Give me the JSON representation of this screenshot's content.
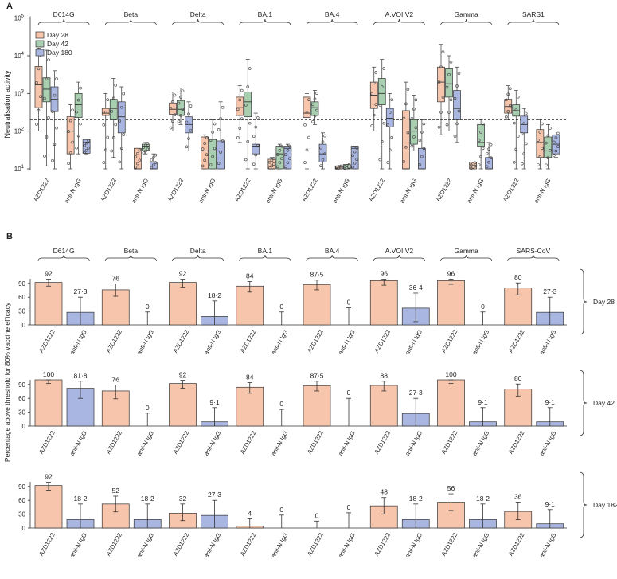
{
  "colors": {
    "day28": "#f7c5ab",
    "day42": "#a9cfb1",
    "day180": "#a9b6e2",
    "stroke": "#333333",
    "dashed": "#444444"
  },
  "chart_data": [
    {
      "type": "box",
      "panel": "A",
      "ylabel": "Neutralisation activity",
      "yscale": "log10",
      "ylim_exponent": [
        1,
        5
      ],
      "y_ticks": [
        {
          "base": "10",
          "exp": "1"
        },
        {
          "base": "10",
          "exp": "2"
        },
        {
          "base": "10",
          "exp": "3"
        },
        {
          "base": "10",
          "exp": "4"
        },
        {
          "base": "10",
          "exp": "5"
        }
      ],
      "threshold": 200,
      "legend": [
        "Day 28",
        "Day 42",
        "Day 180"
      ],
      "groups": [
        "AZD1222",
        "anti-N IgG"
      ],
      "variants": [
        {
          "name": "D614G",
          "boxes": [
            {
              "series": "Day 28",
              "group": "AZD1222",
              "q1": 420,
              "median": 1700,
              "q3": 5200,
              "lo": 100,
              "hi": 16000
            },
            {
              "series": "Day 42",
              "group": "AZD1222",
              "q1": 600,
              "median": 1300,
              "q3": 2600,
              "lo": 12,
              "hi": 14000
            },
            {
              "series": "Day 180",
              "group": "AZD1222",
              "q1": 330,
              "median": 700,
              "q3": 1500,
              "lo": 10,
              "hi": 4000
            },
            {
              "series": "Day 28",
              "group": "anti-N IgG",
              "q1": 25,
              "median": 100,
              "q3": 240,
              "lo": 10,
              "hi": 500
            },
            {
              "series": "Day 42",
              "group": "anti-N IgG",
              "q1": 230,
              "median": 500,
              "q3": 1000,
              "lo": 25,
              "hi": 2000
            },
            {
              "series": "Day 180",
              "group": "anti-N IgG",
              "q1": 26,
              "median": 50,
              "q3": 60,
              "lo": 25,
              "hi": 60
            }
          ]
        },
        {
          "name": "Beta",
          "boxes": [
            {
              "series": "Day 28",
              "group": "AZD1222",
              "q1": 260,
              "median": 300,
              "q3": 400,
              "lo": 10,
              "hi": 1000
            },
            {
              "series": "Day 42",
              "group": "AZD1222",
              "q1": 200,
              "median": 400,
              "q3": 700,
              "lo": 20,
              "hi": 2500
            },
            {
              "series": "Day 180",
              "group": "AZD1222",
              "q1": 90,
              "median": 240,
              "q3": 600,
              "lo": 10,
              "hi": 1500
            },
            {
              "series": "Day 28",
              "group": "anti-N IgG",
              "q1": 10,
              "median": 10,
              "q3": 35,
              "lo": 10,
              "hi": 35
            },
            {
              "series": "Day 42",
              "group": "anti-N IgG",
              "q1": 30,
              "median": 40,
              "q3": 45,
              "lo": 25,
              "hi": 50
            },
            {
              "series": "Day 180",
              "group": "anti-N IgG",
              "q1": 10,
              "median": 10,
              "q3": 15,
              "lo": 10,
              "hi": 25
            }
          ]
        },
        {
          "name": "Delta",
          "boxes": [
            {
              "series": "Day 28",
              "group": "AZD1222",
              "q1": 280,
              "median": 380,
              "q3": 560,
              "lo": 100,
              "hi": 1100
            },
            {
              "series": "Day 42",
              "group": "AZD1222",
              "q1": 260,
              "median": 380,
              "q3": 650,
              "lo": 150,
              "hi": 1400
            },
            {
              "series": "Day 180",
              "group": "AZD1222",
              "q1": 90,
              "median": 150,
              "q3": 240,
              "lo": 30,
              "hi": 600
            },
            {
              "series": "Day 28",
              "group": "anti-N IgG",
              "q1": 10,
              "median": 30,
              "q3": 70,
              "lo": 10,
              "hi": 80
            },
            {
              "series": "Day 42",
              "group": "anti-N IgG",
              "q1": 10,
              "median": 30,
              "q3": 60,
              "lo": 10,
              "hi": 200
            },
            {
              "series": "Day 180",
              "group": "anti-N IgG",
              "q1": 10,
              "median": 30,
              "q3": 55,
              "lo": 10,
              "hi": 600
            }
          ]
        },
        {
          "name": "BA.1",
          "boxes": [
            {
              "series": "Day 28",
              "group": "AZD1222",
              "q1": 260,
              "median": 420,
              "q3": 800,
              "lo": 50,
              "hi": 1600
            },
            {
              "series": "Day 42",
              "group": "AZD1222",
              "q1": 240,
              "median": 600,
              "q3": 1100,
              "lo": 10,
              "hi": 8000
            },
            {
              "series": "Day 180",
              "group": "AZD1222",
              "q1": 25,
              "median": 40,
              "q3": 45,
              "lo": 10,
              "hi": 300
            },
            {
              "series": "Day 28",
              "group": "anti-N IgG",
              "q1": 10,
              "median": 10,
              "q3": 18,
              "lo": 10,
              "hi": 20
            },
            {
              "series": "Day 42",
              "group": "anti-N IgG",
              "q1": 10,
              "median": 25,
              "q3": 40,
              "lo": 10,
              "hi": 45
            },
            {
              "series": "Day 180",
              "group": "anti-N IgG",
              "q1": 10,
              "median": 35,
              "q3": 40,
              "lo": 10,
              "hi": 45
            }
          ]
        },
        {
          "name": "BA.4",
          "boxes": [
            {
              "series": "Day 28",
              "group": "AZD1222",
              "q1": 230,
              "median": 300,
              "q3": 800,
              "lo": 10,
              "hi": 1000
            },
            {
              "series": "Day 42",
              "group": "AZD1222",
              "q1": 260,
              "median": 420,
              "q3": 600,
              "lo": 150,
              "hi": 1200
            },
            {
              "series": "Day 180",
              "group": "AZD1222",
              "q1": 15,
              "median": 25,
              "q3": 45,
              "lo": 10,
              "hi": 90
            },
            {
              "series": "Day 28",
              "group": "anti-N IgG",
              "q1": 10,
              "median": 10,
              "q3": 12,
              "lo": 10,
              "hi": 12
            },
            {
              "series": "Day 42",
              "group": "anti-N IgG",
              "q1": 10,
              "median": 10,
              "q3": 13,
              "lo": 10,
              "hi": 13
            },
            {
              "series": "Day 180",
              "group": "anti-N IgG",
              "q1": 10,
              "median": 35,
              "q3": 40,
              "lo": 10,
              "hi": 40
            }
          ]
        },
        {
          "name": "A.VOI.V2",
          "boxes": [
            {
              "series": "Day 28",
              "group": "AZD1222",
              "q1": 400,
              "median": 900,
              "q3": 2000,
              "lo": 100,
              "hi": 5000
            },
            {
              "series": "Day 42",
              "group": "AZD1222",
              "q1": 500,
              "median": 1000,
              "q3": 2500,
              "lo": 10,
              "hi": 8000
            },
            {
              "series": "Day 180",
              "group": "AZD1222",
              "q1": 130,
              "median": 220,
              "q3": 400,
              "lo": 10,
              "hi": 1000
            },
            {
              "series": "Day 28",
              "group": "anti-N IgG",
              "q1": 10,
              "median": 10,
              "q3": 350,
              "lo": 10,
              "hi": 2000
            },
            {
              "series": "Day 42",
              "group": "anti-N IgG",
              "q1": 45,
              "median": 100,
              "q3": 200,
              "lo": 30,
              "hi": 900
            },
            {
              "series": "Day 180",
              "group": "anti-N IgG",
              "q1": 10,
              "median": 10,
              "q3": 35,
              "lo": 10,
              "hi": 200
            }
          ]
        },
        {
          "name": "Gamma",
          "boxes": [
            {
              "series": "Day 28",
              "group": "AZD1222",
              "q1": 600,
              "median": 2000,
              "q3": 5000,
              "lo": 80,
              "hi": 20000
            },
            {
              "series": "Day 42",
              "group": "AZD1222",
              "q1": 800,
              "median": 1800,
              "q3": 4500,
              "lo": 100,
              "hi": 10000
            },
            {
              "series": "Day 180",
              "group": "AZD1222",
              "q1": 200,
              "median": 400,
              "q3": 1200,
              "lo": 50,
              "hi": 5000
            },
            {
              "series": "Day 28",
              "group": "anti-N IgG",
              "q1": 10,
              "median": 12,
              "q3": 15,
              "lo": 10,
              "hi": 15
            },
            {
              "series": "Day 42",
              "group": "anti-N IgG",
              "q1": 40,
              "median": 50,
              "q3": 150,
              "lo": 10,
              "hi": 200
            },
            {
              "series": "Day 180",
              "group": "anti-N IgG",
              "q1": 10,
              "median": 10,
              "q3": 20,
              "lo": 10,
              "hi": 50
            }
          ]
        },
        {
          "name": "SARS1",
          "boxes": [
            {
              "series": "Day 28",
              "group": "AZD1222",
              "q1": 300,
              "median": 450,
              "q3": 700,
              "lo": 200,
              "hi": 1600
            },
            {
              "series": "Day 42",
              "group": "AZD1222",
              "q1": 250,
              "median": 350,
              "q3": 500,
              "lo": 10,
              "hi": 1200
            },
            {
              "series": "Day 180",
              "group": "AZD1222",
              "q1": 90,
              "median": 150,
              "q3": 250,
              "lo": 10,
              "hi": 400
            },
            {
              "series": "Day 28",
              "group": "anti-N IgG",
              "q1": 20,
              "median": 50,
              "q3": 110,
              "lo": 10,
              "hi": 200
            },
            {
              "series": "Day 42",
              "group": "anti-N IgG",
              "q1": 20,
              "median": 30,
              "q3": 70,
              "lo": 10,
              "hi": 150
            },
            {
              "series": "Day 180",
              "group": "anti-N IgG",
              "q1": 25,
              "median": 45,
              "q3": 80,
              "lo": 20,
              "hi": 100
            }
          ]
        }
      ]
    },
    {
      "type": "bar",
      "panel": "B",
      "ylabel": "Percentage above threshold for 80% vaccine efficacy",
      "ylim": [
        0,
        100
      ],
      "y_ticks": [
        0,
        30,
        60,
        90
      ],
      "groups": [
        "AZD1222",
        "anti-N IgG"
      ],
      "variants": [
        "D614G",
        "Beta",
        "Delta",
        "BA.1",
        "BA.4",
        "A.VOI.V2",
        "Gamma",
        "SARS-CoV"
      ],
      "rows": [
        {
          "day": "Day 28",
          "azd": [
            {
              "v": 92,
              "lab": "92",
              "lo": 84,
              "hi": 99
            },
            {
              "v": 76,
              "lab": "76",
              "lo": 62,
              "hi": 89
            },
            {
              "v": 92,
              "lab": "92",
              "lo": 82,
              "hi": 99
            },
            {
              "v": 84,
              "lab": "84",
              "lo": 71,
              "hi": 94
            },
            {
              "v": 87.5,
              "lab": "87·5",
              "lo": 76,
              "hi": 97
            },
            {
              "v": 96,
              "lab": "96",
              "lo": 86,
              "hi": 99
            },
            {
              "v": 96,
              "lab": "96",
              "lo": 88,
              "hi": 99
            },
            {
              "v": 80,
              "lab": "80",
              "lo": 65,
              "hi": 91
            }
          ],
          "anti": [
            {
              "v": 27.3,
              "lab": "27·3",
              "lo": 0,
              "hi": 60
            },
            {
              "v": 0,
              "lab": "0",
              "lo": 0,
              "hi": 28
            },
            {
              "v": 18.2,
              "lab": "18·2",
              "lo": 0,
              "hi": 52
            },
            {
              "v": 0,
              "lab": "0",
              "lo": 0,
              "hi": 28
            },
            {
              "v": 0,
              "lab": "0",
              "lo": 0,
              "hi": 37
            },
            {
              "v": 36.4,
              "lab": "36·4",
              "lo": 7,
              "hi": 69
            },
            {
              "v": 0,
              "lab": "0",
              "lo": 0,
              "hi": 28
            },
            {
              "v": 27.3,
              "lab": "27·3",
              "lo": 0,
              "hi": 60
            }
          ]
        },
        {
          "day": "Day 42",
          "azd": [
            {
              "v": 100,
              "lab": "100",
              "lo": 92,
              "hi": 100
            },
            {
              "v": 76,
              "lab": "76",
              "lo": 59,
              "hi": 89
            },
            {
              "v": 92,
              "lab": "92",
              "lo": 82,
              "hi": 99
            },
            {
              "v": 84,
              "lab": "84",
              "lo": 71,
              "hi": 94
            },
            {
              "v": 87.5,
              "lab": "87·5",
              "lo": 76,
              "hi": 97
            },
            {
              "v": 88,
              "lab": "88",
              "lo": 76,
              "hi": 97
            },
            {
              "v": 100,
              "lab": "100",
              "lo": 92,
              "hi": 100
            },
            {
              "v": 80,
              "lab": "80",
              "lo": 65,
              "hi": 91
            }
          ],
          "anti": [
            {
              "v": 81.8,
              "lab": "81·8",
              "lo": 60,
              "hi": 97
            },
            {
              "v": 0,
              "lab": "0",
              "lo": 0,
              "hi": 28
            },
            {
              "v": 9.1,
              "lab": "9·1",
              "lo": 0,
              "hi": 40
            },
            {
              "v": 0,
              "lab": "0",
              "lo": 0,
              "hi": 36
            },
            {
              "v": 0,
              "lab": "0",
              "lo": 0,
              "hi": 60
            },
            {
              "v": 27.3,
              "lab": "27·3",
              "lo": 0,
              "hi": 60
            },
            {
              "v": 9.1,
              "lab": "9·1",
              "lo": 0,
              "hi": 40
            },
            {
              "v": 9.1,
              "lab": "9·1",
              "lo": 0,
              "hi": 40
            }
          ]
        },
        {
          "day": "Day 182",
          "azd": [
            {
              "v": 92,
              "lab": "92",
              "lo": 82,
              "hi": 99
            },
            {
              "v": 52,
              "lab": "52",
              "lo": 35,
              "hi": 69
            },
            {
              "v": 32,
              "lab": "32",
              "lo": 16,
              "hi": 52
            },
            {
              "v": 4,
              "lab": "4",
              "lo": 0,
              "hi": 20
            },
            {
              "v": 0,
              "lab": "0",
              "lo": 0,
              "hi": 15
            },
            {
              "v": 48,
              "lab": "48",
              "lo": 30,
              "hi": 66
            },
            {
              "v": 56,
              "lab": "56",
              "lo": 38,
              "hi": 74
            },
            {
              "v": 36,
              "lab": "36",
              "lo": 18,
              "hi": 56
            }
          ],
          "anti": [
            {
              "v": 18.2,
              "lab": "18·2",
              "lo": 0,
              "hi": 52
            },
            {
              "v": 18.2,
              "lab": "18·2",
              "lo": 0,
              "hi": 52
            },
            {
              "v": 27.3,
              "lab": "27·3",
              "lo": 0,
              "hi": 60
            },
            {
              "v": 0,
              "lab": "0",
              "lo": 0,
              "hi": 28
            },
            {
              "v": 0,
              "lab": "0",
              "lo": 0,
              "hi": 33
            },
            {
              "v": 18.2,
              "lab": "18·2",
              "lo": 0,
              "hi": 52
            },
            {
              "v": 18.2,
              "lab": "18·2",
              "lo": 0,
              "hi": 52
            },
            {
              "v": 9.1,
              "lab": "9·1",
              "lo": 0,
              "hi": 40
            }
          ]
        }
      ]
    }
  ]
}
